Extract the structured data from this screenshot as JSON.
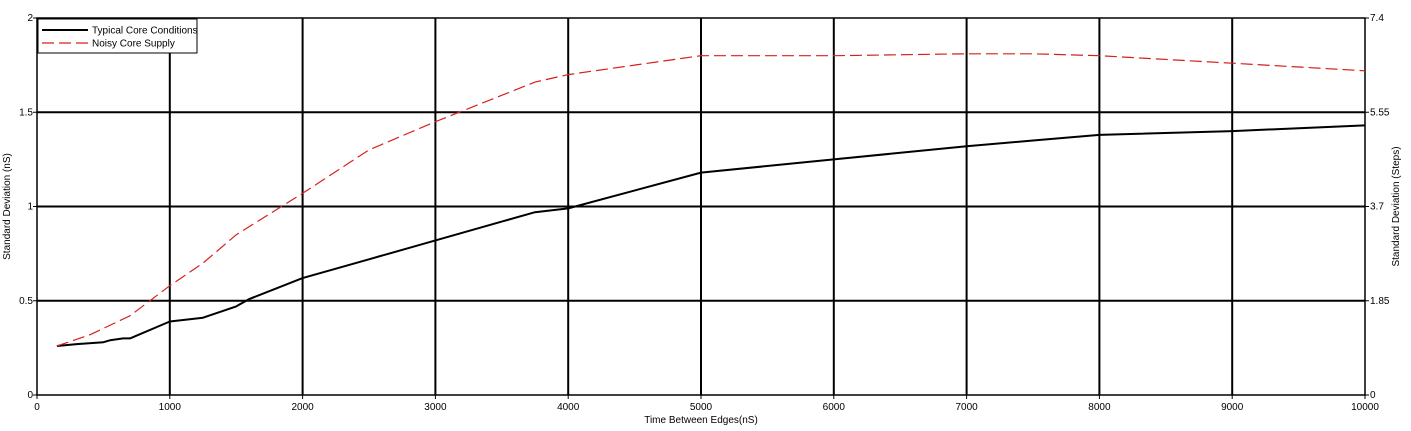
{
  "chart_data": {
    "type": "line",
    "xlabel": "Time Between Edges(nS)",
    "ylabel": "Standard Deviation (nS)",
    "y2label": "Standard Deviation (Steps)",
    "xlim": [
      0,
      10000
    ],
    "ylim": [
      0,
      2
    ],
    "y2lim": [
      0,
      7.4
    ],
    "x_ticks": [
      0,
      1000,
      2000,
      3000,
      4000,
      5000,
      6000,
      7000,
      8000,
      9000,
      10000
    ],
    "x_tick_labels": [
      "0",
      "1000",
      "2000",
      "3000",
      "4000",
      "5000",
      "6000",
      "7000",
      "8000",
      "9000",
      "10000"
    ],
    "y_ticks": [
      0,
      0.5,
      1,
      1.5,
      2
    ],
    "y_tick_labels": [
      "0",
      "0.5",
      "1",
      "1.5",
      "2"
    ],
    "y2_ticks": [
      0,
      1.85,
      3.7,
      5.55,
      7.4
    ],
    "y2_tick_labels": [
      "0",
      "1.85",
      "3.7",
      "5.55",
      "7.4"
    ],
    "grid": true,
    "legend_position": "top-left",
    "series": [
      {
        "name": "Typical Core Conditions",
        "color": "#000000",
        "style": "solid",
        "x": [
          150,
          300,
          500,
          550,
          650,
          700,
          1000,
          1250,
          1500,
          1600,
          2000,
          2500,
          3000,
          3500,
          3750,
          4000,
          5000,
          6000,
          7000,
          7500,
          8000,
          9000,
          10000
        ],
        "y": [
          0.26,
          0.27,
          0.28,
          0.29,
          0.3,
          0.3,
          0.39,
          0.41,
          0.47,
          0.51,
          0.62,
          0.72,
          0.82,
          0.92,
          0.97,
          0.99,
          1.18,
          1.25,
          1.32,
          1.35,
          1.38,
          1.4,
          1.43
        ]
      },
      {
        "name": "Noisy Core Supply",
        "color": "#d62020",
        "style": "dashed",
        "x": [
          150,
          400,
          700,
          1000,
          1250,
          1500,
          2000,
          2500,
          3000,
          3500,
          3750,
          4000,
          4500,
          5000,
          6000,
          7000,
          7500,
          8000,
          9000,
          10000
        ],
        "y": [
          0.26,
          0.32,
          0.42,
          0.58,
          0.7,
          0.85,
          1.07,
          1.3,
          1.45,
          1.59,
          1.66,
          1.7,
          1.75,
          1.8,
          1.8,
          1.81,
          1.81,
          1.8,
          1.76,
          1.72
        ]
      }
    ]
  }
}
